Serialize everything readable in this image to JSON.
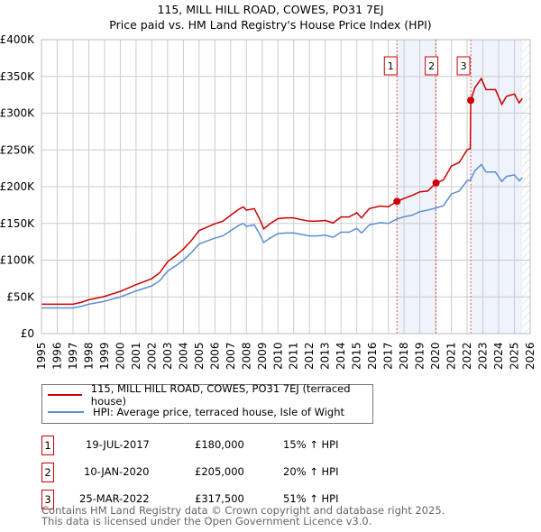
{
  "chart_data": {
    "type": "line",
    "title": "115, MILL HILL ROAD, COWES, PO31 7EJ",
    "subtitle": "Price paid vs. HM Land Registry's House Price Index (HPI)",
    "xlim": [
      1995,
      2026
    ],
    "ylim": [
      0,
      400000
    ],
    "y_ticks": [
      "£0",
      "£50K",
      "£100K",
      "£150K",
      "£200K",
      "£250K",
      "£300K",
      "£350K",
      "£400K"
    ],
    "x_ticks": [
      "1995",
      "1996",
      "1997",
      "1998",
      "1999",
      "2000",
      "2001",
      "2002",
      "2003",
      "2004",
      "2005",
      "2006",
      "2007",
      "2008",
      "2009",
      "2010",
      "2011",
      "2012",
      "2013",
      "2014",
      "2015",
      "2016",
      "2017",
      "2018",
      "2019",
      "2020",
      "2021",
      "2022",
      "2023",
      "2024",
      "2025",
      "2026"
    ],
    "grid": true,
    "x": [
      1995,
      1996,
      1997,
      1997.5,
      1998,
      1999,
      2000,
      2001,
      2002,
      2002.5,
      2003,
      2003.5,
      2004,
      2004.5,
      2005,
      2005.5,
      2006,
      2006.5,
      2007,
      2007.5,
      2007.8,
      2008,
      2008.5,
      2008.8,
      2009.1,
      2009.5,
      2010,
      2010.5,
      2011,
      2011.5,
      2012,
      2012.5,
      2013,
      2013.5,
      2014,
      2014.5,
      2015,
      2015.3,
      2015.8,
      2016.5,
      2017,
      2017.55,
      2018,
      2018.5,
      2019,
      2019.5,
      2020.03,
      2020.5,
      2021,
      2021.5,
      2022,
      2022.2,
      2022.23,
      2022.5,
      2022.9,
      2023.2,
      2023.8,
      2024.2,
      2024.5,
      2025,
      2025.3,
      2025.5
    ],
    "series": [
      {
        "name": "115, MILL HILL ROAD, COWES, PO31 7EJ (terraced house)",
        "color": "#cc0000",
        "values": [
          40,
          40,
          40,
          42.5,
          46,
          50.6,
          57.5,
          66.7,
          74.8,
          82.8,
          97.8,
          105.8,
          115,
          126.5,
          140.3,
          144.9,
          149.5,
          153,
          161,
          169,
          172.5,
          168,
          170,
          157.5,
          142.6,
          149.5,
          156.4,
          157.5,
          157.5,
          155,
          153,
          153,
          154,
          150.6,
          158.7,
          158.7,
          164.5,
          157.5,
          170.2,
          173.6,
          172.5,
          180,
          184,
          188,
          193,
          194,
          205,
          209,
          228,
          233,
          250,
          252,
          317.5,
          335,
          347,
          332,
          332,
          312,
          323,
          326,
          314,
          320
        ]
      },
      {
        "name": "HPI: Average price, terraced house, Isle of Wight",
        "color": "#5b8fd0",
        "values": [
          35,
          35,
          35,
          37,
          40,
          44,
          50,
          58,
          65,
          72,
          85,
          92,
          100,
          110,
          122,
          126,
          130,
          133,
          140,
          147,
          150,
          146,
          148,
          137,
          124,
          130,
          136,
          137,
          137,
          135,
          133,
          133,
          134,
          131,
          138,
          138,
          143,
          137,
          148,
          151,
          150,
          156,
          159,
          161,
          166,
          168,
          171,
          174,
          190,
          194,
          208,
          209,
          210,
          222,
          230,
          220,
          220,
          207,
          214,
          216,
          208,
          212
        ]
      }
    ],
    "value_unit": "thousands GBP",
    "sales": [
      {
        "label": "1",
        "x": 2017.55,
        "price": 180
      },
      {
        "label": "2",
        "x": 2020.03,
        "price": 205
      },
      {
        "label": "3",
        "x": 2022.23,
        "price": 317.5
      }
    ],
    "shaded_ranges": [
      [
        2017.55,
        2020.03
      ],
      [
        2022.23,
        2025.5
      ]
    ],
    "hatched_from": 2025.5,
    "legend_placement": "below"
  },
  "transactions": [
    {
      "num": "1",
      "date": "19-JUL-2017",
      "price": "£180,000",
      "delta": "15% ↑ HPI"
    },
    {
      "num": "2",
      "date": "10-JAN-2020",
      "price": "£205,000",
      "delta": "20% ↑ HPI"
    },
    {
      "num": "3",
      "date": "25-MAR-2022",
      "price": "£317,500",
      "delta": "51% ↑ HPI"
    }
  ],
  "footer": [
    "Contains HM Land Registry data © Crown copyright and database right 2025.",
    "This data is licensed under the Open Government Licence v3.0."
  ]
}
